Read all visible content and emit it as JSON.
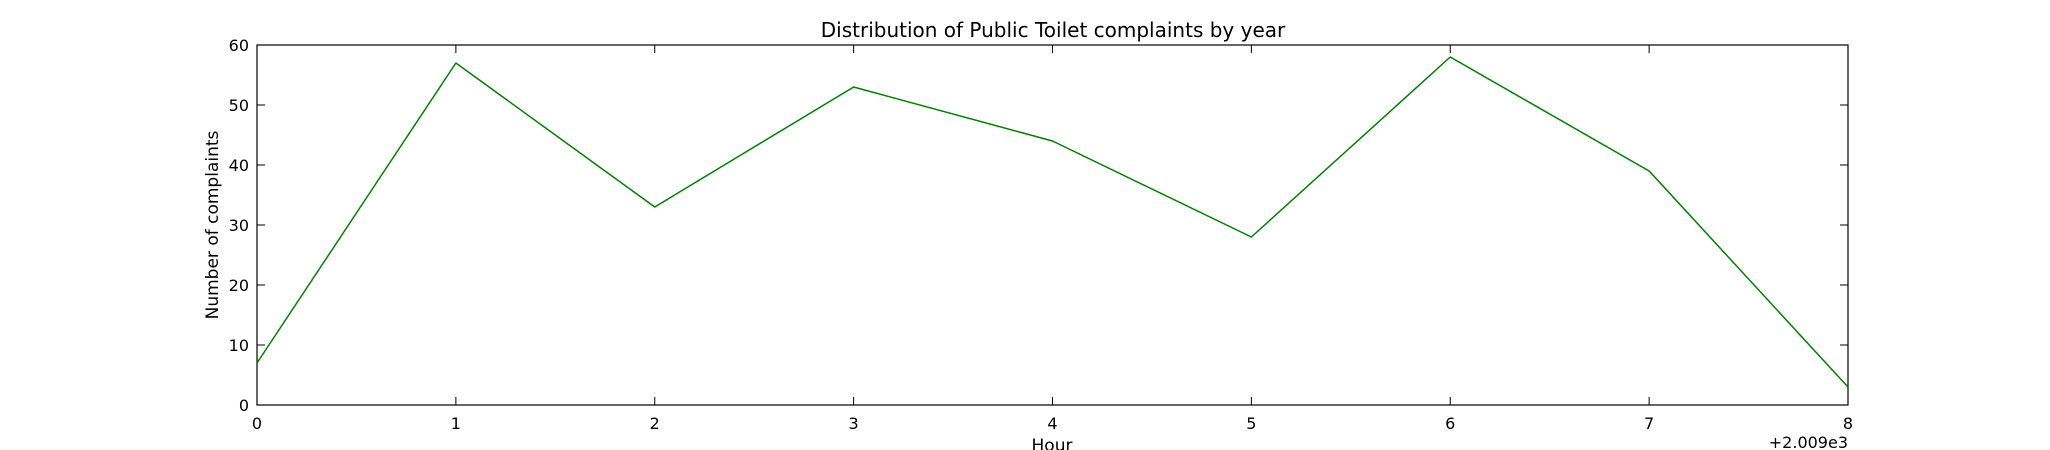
{
  "chart_data": {
    "type": "line",
    "title": "Distribution of  Public Toilet complaints by year",
    "xlabel": "Hour",
    "ylabel": "Number of complaints",
    "x_offset_label": "+2.009e3",
    "xlim": [
      0,
      8
    ],
    "ylim": [
      0,
      60
    ],
    "x_ticks": [
      0,
      1,
      2,
      3,
      4,
      5,
      6,
      7,
      8
    ],
    "y_ticks": [
      0,
      10,
      20,
      30,
      40,
      50,
      60
    ],
    "grid": false,
    "series": [
      {
        "color": "#008000",
        "x": [
          0,
          1,
          2,
          3,
          4,
          5,
          6,
          7,
          8
        ],
        "y": [
          7,
          57,
          33,
          53,
          44,
          28,
          58,
          39,
          3
        ]
      }
    ]
  }
}
